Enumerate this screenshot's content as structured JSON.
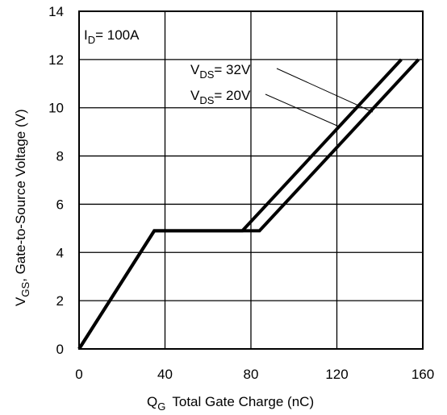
{
  "chart_data": {
    "type": "line",
    "x_axis": {
      "label_main": "Q",
      "label_sub": "G",
      "label_rest": "Total Gate Charge (nC)",
      "range": [
        0,
        160
      ],
      "ticks": [
        0,
        40,
        80,
        120,
        160
      ],
      "tick_labels": [
        "0",
        "40",
        "80",
        "120",
        "160"
      ]
    },
    "y_axis": {
      "label_main": "V",
      "label_sub": "GS",
      "label_rest": ", Gate-to-Source Voltage (V)",
      "range": [
        0,
        14
      ],
      "ticks": [
        0,
        2,
        4,
        6,
        8,
        10,
        12,
        14
      ],
      "tick_labels": [
        "0",
        "2",
        "4",
        "6",
        "8",
        "10",
        "12",
        "14"
      ]
    },
    "grid": true,
    "condition": {
      "main": "I",
      "sub": "D",
      "rest": "= 100A"
    },
    "series": [
      {
        "label_main": "V",
        "label_sub": "DS",
        "label_rest": "= 32V",
        "x": [
          0,
          35,
          84,
          158
        ],
        "y": [
          0,
          4.9,
          4.9,
          12
        ]
      },
      {
        "label_main": "V",
        "label_sub": "DS",
        "label_rest": "= 20V",
        "x": [
          0,
          35,
          76,
          150
        ],
        "y": [
          0,
          4.9,
          4.9,
          12
        ]
      }
    ]
  }
}
